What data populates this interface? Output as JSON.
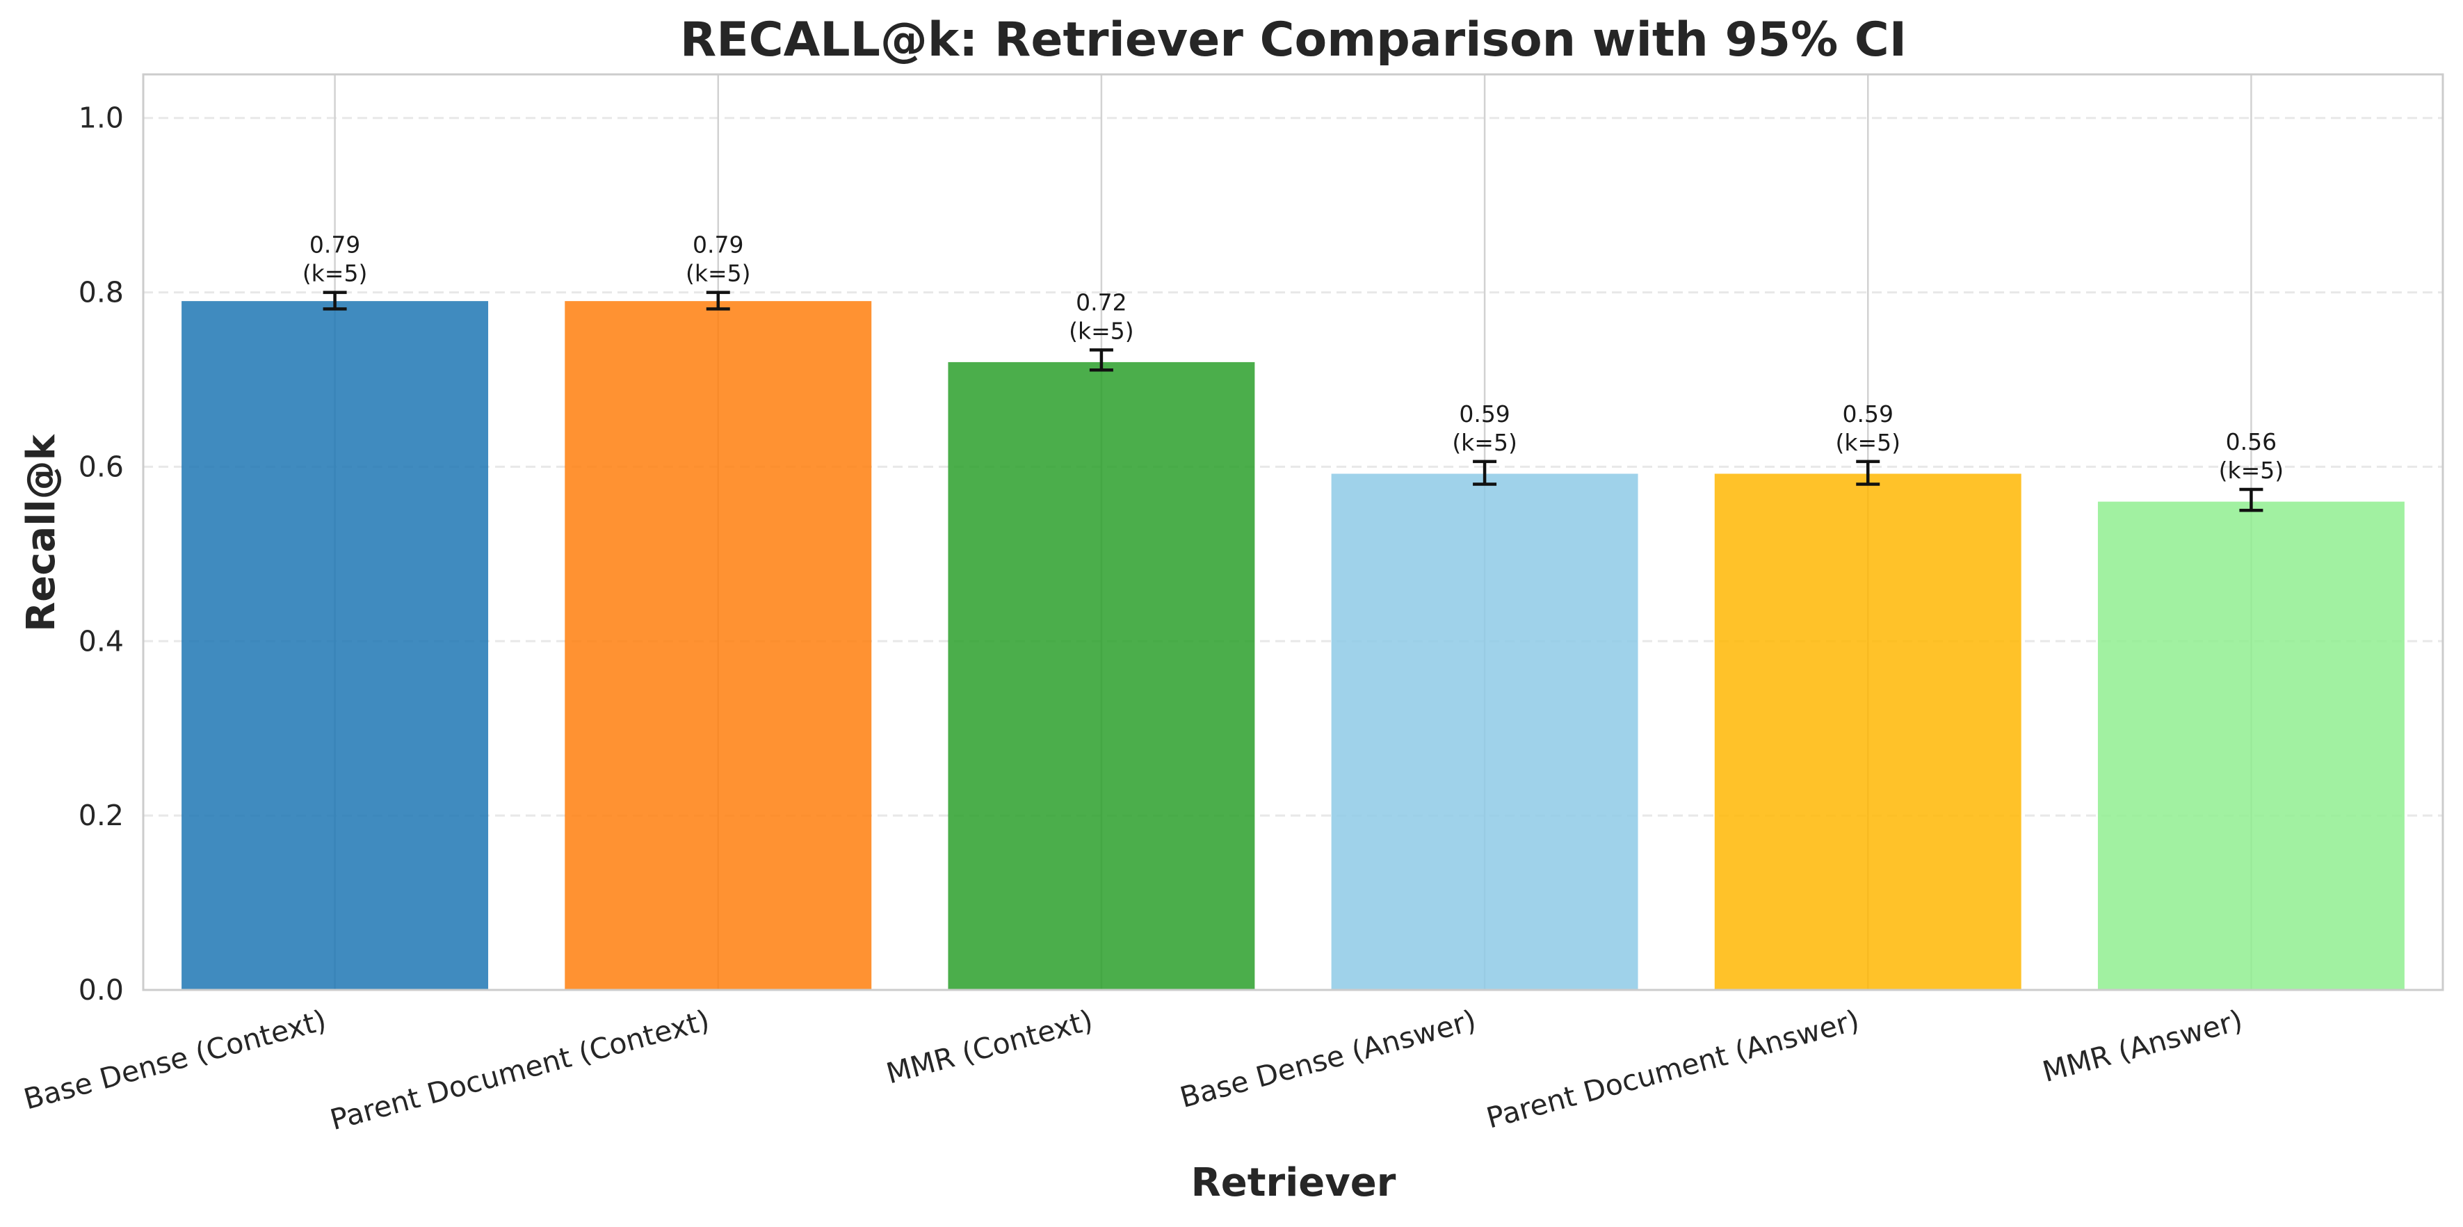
{
  "chart_data": {
    "type": "bar",
    "title": "RECALL@k: Retriever Comparison with 95% CI",
    "xlabel": "Retriever",
    "ylabel": "Recall@k",
    "ylim": [
      0,
      1.05
    ],
    "yticks": [
      "0.0",
      "0.2",
      "0.4",
      "0.6",
      "0.8",
      "1.0"
    ],
    "grid": true,
    "categories": [
      "Base Dense (Context)",
      "Parent Document (Context)",
      "MMR (Context)",
      "Base Dense (Answer)",
      "Parent Document (Answer)",
      "MMR (Answer)"
    ],
    "values": [
      0.79,
      0.79,
      0.72,
      0.592,
      0.592,
      0.56
    ],
    "ci_low": [
      0.781,
      0.781,
      0.711,
      0.58,
      0.58,
      0.55
    ],
    "ci_high": [
      0.8,
      0.8,
      0.734,
      0.606,
      0.606,
      0.574
    ],
    "data_labels": [
      "0.79",
      "0.79",
      "0.72",
      "0.59",
      "0.59",
      "0.56"
    ],
    "k_labels": [
      "(k=5)",
      "(k=5)",
      "(k=5)",
      "(k=5)",
      "(k=5)",
      "(k=5)"
    ],
    "colors": [
      "#1f77b4",
      "#ff7f0e",
      "#2ca02c",
      "#8ecae6",
      "#ffb703",
      "#90ee90"
    ]
  }
}
